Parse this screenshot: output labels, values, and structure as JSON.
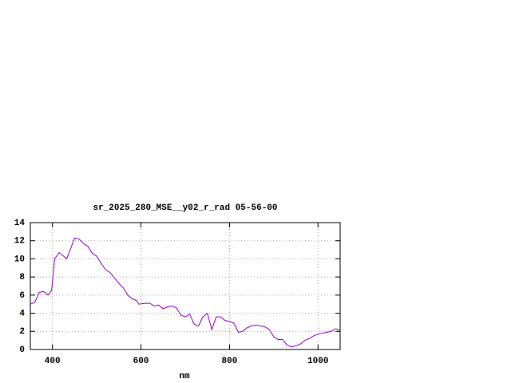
{
  "chart_data": {
    "type": "line",
    "title": "sr_2025_280_MSE__y02_r_rad 05-56-00",
    "x_label": "nm",
    "x": [
      350,
      360,
      370,
      380,
      390,
      398,
      405,
      415,
      425,
      432,
      440,
      450,
      460,
      470,
      480,
      490,
      500,
      510,
      520,
      530,
      540,
      550,
      560,
      570,
      580,
      590,
      595,
      610,
      620,
      630,
      640,
      650,
      660,
      670,
      680,
      690,
      700,
      710,
      720,
      730,
      740,
      750,
      760,
      770,
      780,
      790,
      800,
      810,
      820,
      830,
      840,
      850,
      860,
      870,
      880,
      890,
      900,
      910,
      920,
      930,
      940,
      950,
      960,
      970,
      980,
      990,
      1000,
      1010,
      1020,
      1030,
      1040,
      1050
    ],
    "series": [
      {
        "color": "#9400d3",
        "values": [
          5.0,
          5.2,
          6.3,
          6.4,
          6.0,
          6.5,
          10.0,
          10.7,
          10.3,
          10.0,
          11.0,
          12.3,
          12.2,
          11.7,
          11.4,
          10.6,
          10.3,
          9.5,
          8.8,
          8.5,
          7.9,
          7.3,
          6.8,
          6.0,
          5.6,
          5.4,
          5.0,
          5.1,
          5.1,
          4.8,
          4.9,
          4.5,
          4.7,
          4.8,
          4.6,
          3.8,
          3.6,
          3.9,
          2.8,
          2.6,
          3.6,
          4.0,
          2.2,
          3.6,
          3.6,
          3.2,
          3.1,
          2.9,
          1.9,
          2.0,
          2.4,
          2.6,
          2.7,
          2.6,
          2.5,
          2.2,
          1.4,
          1.1,
          1.1,
          0.5,
          0.3,
          0.4,
          0.6,
          1.0,
          1.2,
          1.5,
          1.7,
          1.8,
          1.9,
          2.0,
          2.3,
          2.1
        ]
      }
    ],
    "xlim": [
      350,
      1050
    ],
    "xticks": [
      400,
      600,
      800,
      1000
    ],
    "ylim": [
      0,
      14
    ],
    "yticks": [
      0,
      2,
      4,
      6,
      8,
      10,
      12,
      14
    ],
    "grid": true
  }
}
